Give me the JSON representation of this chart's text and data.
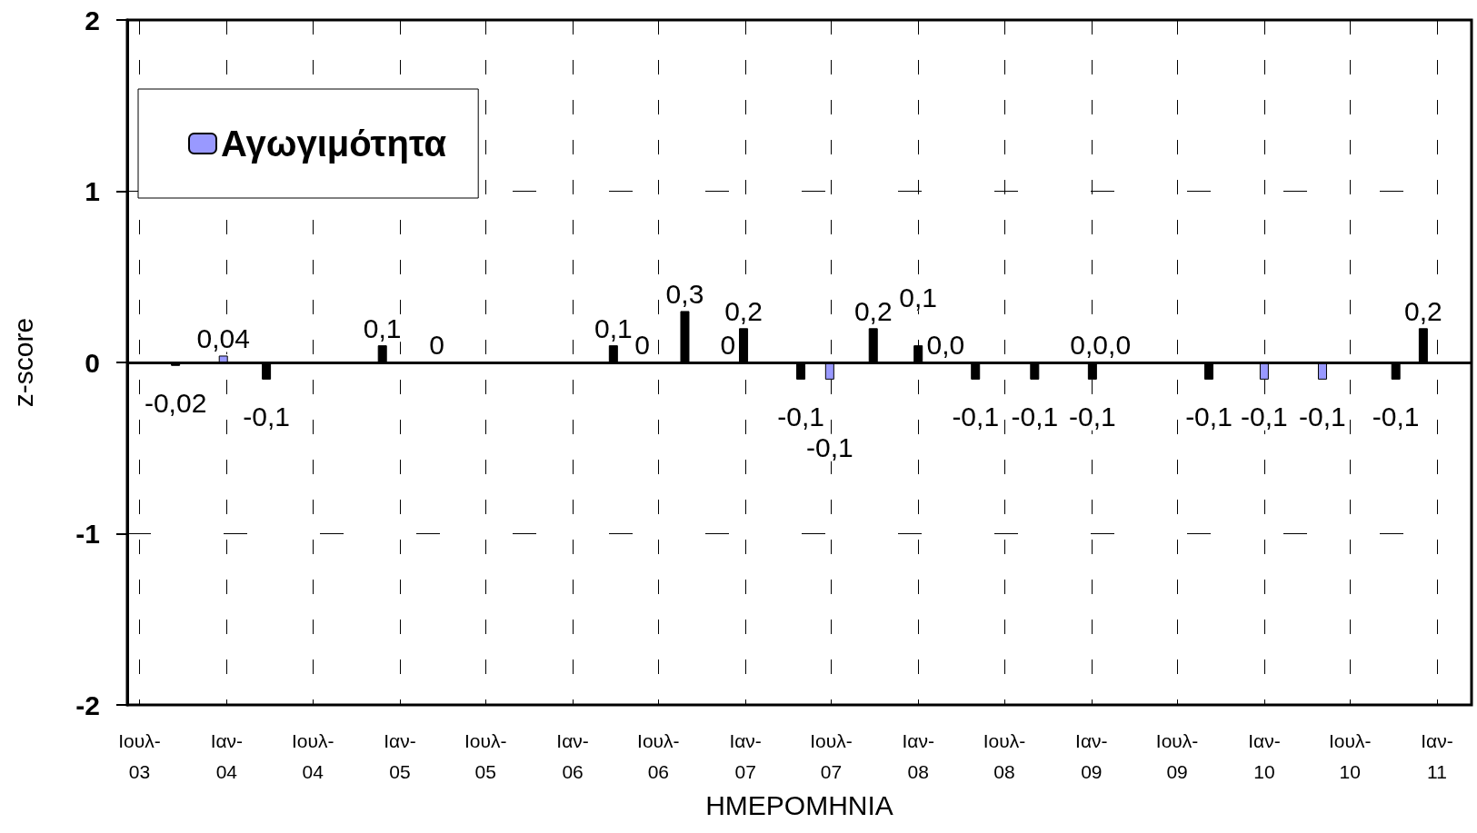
{
  "chart_data": {
    "type": "bar",
    "xlabel": "ΗΜΕΡΟΜΗΝΙΑ",
    "ylabel": "z-score",
    "x": [
      "2003-09-15",
      "2003-12-25",
      "2004-03-25",
      "2004-11-25",
      "2005-03-20",
      "2006-03-28",
      "2006-05-28",
      "2006-08-26",
      "2006-11-25",
      "2006-12-28",
      "2007-04-28",
      "2007-06-28",
      "2007-09-28",
      "2008-01-01",
      "2008-02-28",
      "2008-05-01",
      "2008-09-03",
      "2009-01-03",
      "2009-01-20",
      "2009-09-06",
      "2010-01-01",
      "2010-05-04",
      "2010-10-06",
      "2010-12-03"
    ],
    "series": [
      {
        "name": "Αγωγιμότητα",
        "color": "#9999ff",
        "values": [
          -0.02,
          0.04,
          -0.1,
          0.1,
          0,
          0.1,
          0,
          0.3,
          0,
          0.2,
          -0.1,
          -0.1,
          0.2,
          0.1,
          0,
          -0.1,
          -0.1,
          -0.1,
          0,
          -0.1,
          -0.1,
          -0.1,
          -0.1,
          0.2
        ],
        "colors": [
          "#000000",
          "#9999ff",
          "#000000",
          "#000000",
          "#000000",
          "#000000",
          "#000000",
          "#000000",
          "#000000",
          "#000000",
          "#000000",
          "#9999ff",
          "#000000",
          "#000000",
          "#000000",
          "#000000",
          "#000000",
          "#000000",
          "#000000",
          "#000000",
          "#9999ff",
          "#9999ff",
          "#000000",
          "#000000"
        ],
        "value_labels": [
          "-0,02",
          "0,04",
          "-0,1",
          "0,1",
          "0",
          "0,1",
          "0",
          "0,3",
          "0",
          "0,2",
          "-0,1",
          "-0,1",
          "0,2",
          "0,1",
          "0,0",
          "-0,1",
          "-0,1",
          "-0,1",
          "0,0,0",
          "-0,1",
          "-0,1",
          "-0,1",
          "-0,1",
          "0,2"
        ]
      }
    ],
    "xlim": [
      "2003-06-05",
      "2011-03-15"
    ],
    "xticks": [
      {
        "value": "2003-07",
        "label": "Ιουλ-03"
      },
      {
        "value": "2004-01",
        "label": "Ιαν-04"
      },
      {
        "value": "2004-07",
        "label": "Ιουλ-04"
      },
      {
        "value": "2005-01",
        "label": "Ιαν-05"
      },
      {
        "value": "2005-07",
        "label": "Ιουλ-05"
      },
      {
        "value": "2006-01",
        "label": "Ιαν-06"
      },
      {
        "value": "2006-07",
        "label": "Ιουλ-06"
      },
      {
        "value": "2007-01",
        "label": "Ιαν-07"
      },
      {
        "value": "2007-07",
        "label": "Ιουλ-07"
      },
      {
        "value": "2008-01",
        "label": "Ιαν-08"
      },
      {
        "value": "2008-07",
        "label": "Ιουλ-08"
      },
      {
        "value": "2009-01",
        "label": "Ιαν-09"
      },
      {
        "value": "2009-07",
        "label": "Ιουλ-09"
      },
      {
        "value": "2010-01",
        "label": "Ιαν-10"
      },
      {
        "value": "2010-07",
        "label": "Ιουλ-10"
      },
      {
        "value": "2011-01",
        "label": "Ιαν-11"
      }
    ],
    "ylim": [
      -2,
      2
    ],
    "yticks": [
      -2,
      -1,
      0,
      1,
      2
    ],
    "grid": true,
    "legend": "top left",
    "ref_lines": [
      {
        "axis": "y",
        "value": 0,
        "color": "#000000"
      }
    ]
  }
}
